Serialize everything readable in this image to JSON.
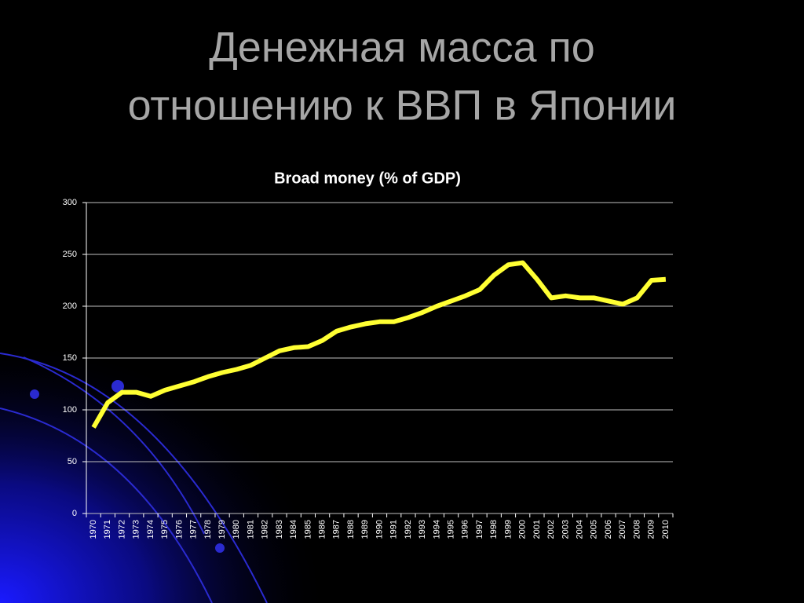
{
  "slide_title": [
    "Денежная масса по",
    "отношению к ВВП в Японии"
  ],
  "chart_data": {
    "type": "line",
    "title": "Broad money (% of GDP)",
    "categories": [
      "1970",
      "1971",
      "1972",
      "1973",
      "1974",
      "1975",
      "1976",
      "1977",
      "1978",
      "1979",
      "1980",
      "1981",
      "1982",
      "1983",
      "1984",
      "1985",
      "1986",
      "1987",
      "1988",
      "1989",
      "1990",
      "1991",
      "1992",
      "1993",
      "1994",
      "1995",
      "1996",
      "1997",
      "1998",
      "1999",
      "2000",
      "2001",
      "2002",
      "2003",
      "2004",
      "2005",
      "2006",
      "2007",
      "2008",
      "2009",
      "2010"
    ],
    "values": [
      83,
      107,
      117,
      117,
      113,
      119,
      123,
      127,
      132,
      136,
      139,
      143,
      150,
      157,
      160,
      161,
      167,
      176,
      180,
      183,
      185,
      185,
      189,
      194,
      200,
      205,
      210,
      216,
      230,
      240,
      242,
      226,
      208,
      210,
      208,
      208,
      205,
      202,
      208,
      225,
      226
    ],
    "color": "#ffff33",
    "ylim": [
      0,
      300
    ],
    "yticks": [
      0,
      50,
      100,
      150,
      200,
      250,
      300
    ],
    "grid": true
  }
}
